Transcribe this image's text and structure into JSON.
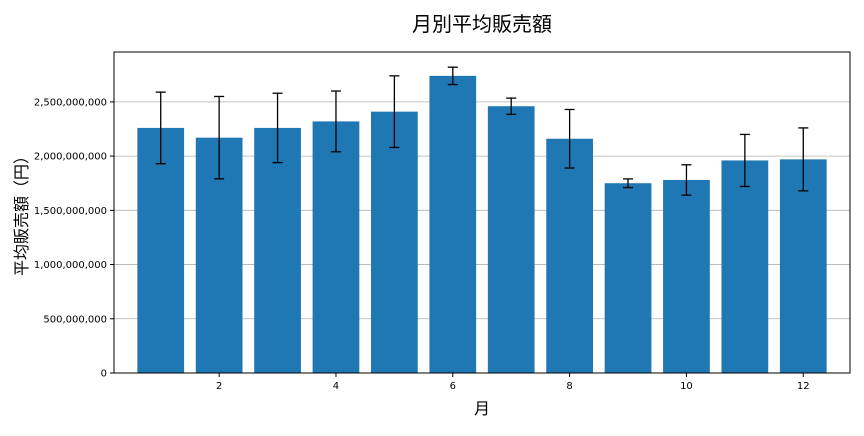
{
  "chart_data": {
    "type": "bar",
    "title": "月別平均販売額",
    "xlabel": "月",
    "ylabel": "平均販売額（円）",
    "x": [
      1,
      2,
      3,
      4,
      5,
      6,
      7,
      8,
      9,
      10,
      11,
      12
    ],
    "values": [
      2260000000,
      2170000000,
      2260000000,
      2320000000,
      2410000000,
      2740000000,
      2460000000,
      2160000000,
      1750000000,
      1780000000,
      1960000000,
      1970000000
    ],
    "errors": [
      330000000,
      380000000,
      320000000,
      280000000,
      330000000,
      80000000,
      75000000,
      270000000,
      40000000,
      140000000,
      240000000,
      290000000
    ],
    "xticks": [
      2,
      4,
      6,
      8,
      10,
      12
    ],
    "xtick_labels": [
      "2",
      "4",
      "6",
      "8",
      "10",
      "12"
    ],
    "yticks": [
      0,
      500000000,
      1000000000,
      1500000000,
      2000000000,
      2500000000
    ],
    "ytick_labels": [
      "0",
      "500,000,000",
      "1,000,000,000",
      "1,500,000,000",
      "2,000,000,000",
      "2,500,000,000"
    ],
    "xlim": [
      0.2,
      12.8
    ],
    "ylim": [
      0,
      2960000000
    ],
    "grid": "horizontal",
    "colors": {
      "bar": "#1f77b4",
      "error": "#000000",
      "grid": "#b0b0b0"
    }
  }
}
